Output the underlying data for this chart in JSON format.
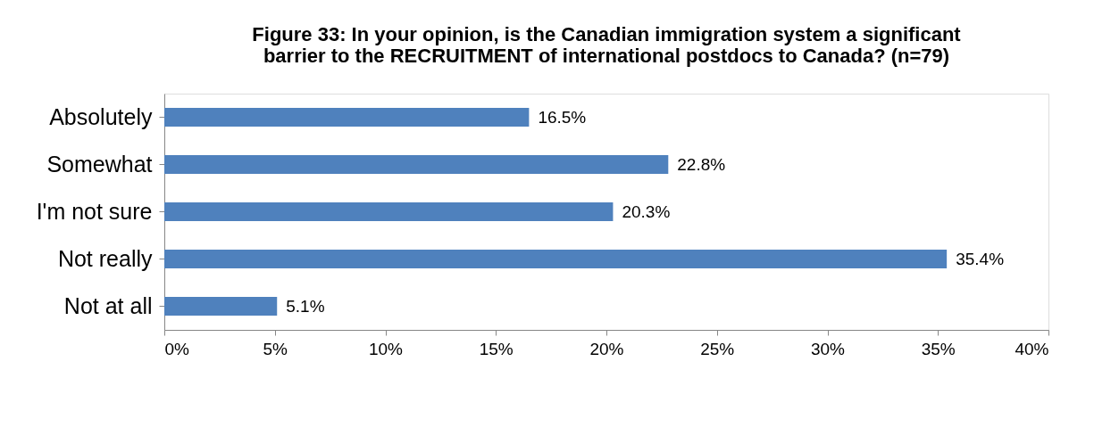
{
  "chart_data": {
    "type": "bar",
    "orientation": "horizontal",
    "title": "Figure 33: In your opinion, is the Canadian immigration system a significant\nbarrier to the RECRUITMENT of international postdocs to Canada? (n=79)",
    "categories": [
      "Absolutely",
      "Somewhat",
      "I'm not sure",
      "Not really",
      "Not at all"
    ],
    "values": [
      16.5,
      22.8,
      20.3,
      35.4,
      5.1
    ],
    "value_labels": [
      "16.5%",
      "22.8%",
      "20.3%",
      "35.4%",
      "5.1%"
    ],
    "color": "#4f81bd",
    "xlim": [
      0,
      40
    ],
    "xticks": [
      {
        "value": 0,
        "label": "0%"
      },
      {
        "value": 5,
        "label": "5%"
      },
      {
        "value": 10,
        "label": "10%"
      },
      {
        "value": 15,
        "label": "15%"
      },
      {
        "value": 20,
        "label": "20%"
      },
      {
        "value": 25,
        "label": "25%"
      },
      {
        "value": 30,
        "label": "30%"
      },
      {
        "value": 35,
        "label": "35%"
      },
      {
        "value": 40,
        "label": "40%"
      }
    ],
    "grid": false
  }
}
